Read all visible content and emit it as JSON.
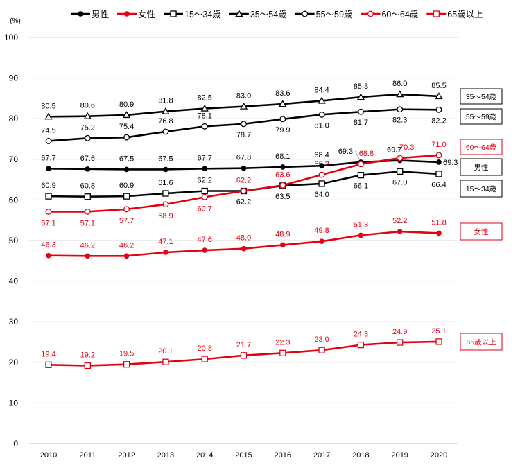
{
  "chart_data": {
    "type": "line",
    "title": "",
    "unit_label": "(%)",
    "xlabel": "",
    "ylabel": "",
    "ylim": [
      0,
      100
    ],
    "yticks": [
      0,
      10,
      20,
      30,
      40,
      50,
      60,
      70,
      80,
      90,
      100
    ],
    "grid": true,
    "categories": [
      "2010",
      "2011",
      "2012",
      "2013",
      "2014",
      "2015",
      "2016",
      "2017",
      "2018",
      "2019",
      "2020"
    ],
    "series": [
      {
        "name": "男性",
        "color": "#000000",
        "marker": "filled-circle",
        "values": [
          67.7,
          67.6,
          67.5,
          67.5,
          67.7,
          67.8,
          68.1,
          68.4,
          69.3,
          69.7,
          69.3
        ],
        "end_label": "男性"
      },
      {
        "name": "女性",
        "color": "#e60012",
        "marker": "filled-circle",
        "values": [
          46.3,
          46.2,
          46.2,
          47.1,
          47.6,
          48.0,
          48.9,
          49.8,
          51.3,
          52.2,
          51.8
        ],
        "end_label": "女性"
      },
      {
        "name": "15～34歳",
        "color": "#000000",
        "marker": "open-square",
        "values": [
          60.9,
          60.8,
          60.9,
          61.6,
          62.2,
          62.2,
          63.5,
          64.0,
          66.1,
          67.0,
          66.4
        ],
        "end_label": "15～34歳"
      },
      {
        "name": "35～54歳",
        "color": "#000000",
        "marker": "open-triangle",
        "values": [
          80.5,
          80.6,
          80.9,
          81.8,
          82.5,
          83.0,
          83.6,
          84.4,
          85.3,
          86.0,
          85.5
        ],
        "end_label": "35～54歳"
      },
      {
        "name": "55～59歳",
        "color": "#000000",
        "marker": "open-circle",
        "values": [
          74.5,
          75.2,
          75.4,
          76.8,
          78.1,
          78.7,
          79.9,
          81.0,
          81.7,
          82.3,
          82.2
        ],
        "end_label": "55～59歳"
      },
      {
        "name": "60～64歳",
        "color": "#e60012",
        "marker": "open-circle",
        "values": [
          57.1,
          57.1,
          57.7,
          58.9,
          60.7,
          62.2,
          63.6,
          66.2,
          68.8,
          70.3,
          71.0
        ],
        "end_label": "60～64歳"
      },
      {
        "name": "65歳以上",
        "color": "#e60012",
        "marker": "open-square",
        "values": [
          19.4,
          19.2,
          19.5,
          20.1,
          20.8,
          21.7,
          22.3,
          23.0,
          24.3,
          24.9,
          25.1
        ],
        "end_label": "65歳以上"
      }
    ]
  }
}
